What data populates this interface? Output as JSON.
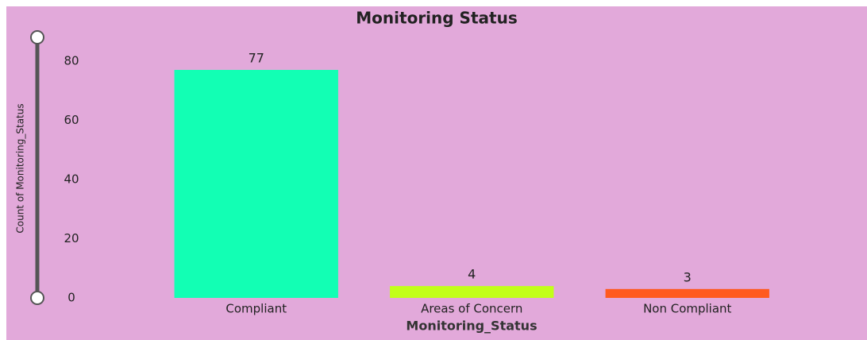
{
  "chart_data": {
    "type": "bar",
    "title": "Monitoring Status",
    "categories": [
      "Compliant",
      "Areas of Concern",
      "Non Compliant"
    ],
    "values": [
      77,
      4,
      3
    ],
    "colors": [
      "#12ffb4",
      "#c2ff1a",
      "#ff5a1f"
    ],
    "y_label": "Count of Monitoring_Status",
    "x_label": "Monitoring_Status",
    "ylim": [
      0,
      88
    ],
    "yticks": [
      0,
      20,
      40,
      60,
      80
    ],
    "grid": false
  }
}
